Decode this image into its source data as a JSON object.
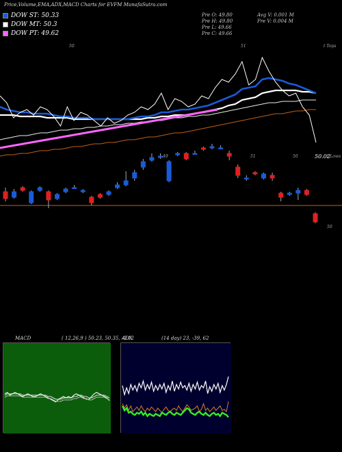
{
  "title": "Price,Volume,EMA,ADX,MACD Charts for EVFM MunafaSutra.com",
  "legend": [
    {
      "label": "DOW ST: 50.33",
      "color": "#1a5bd6"
    },
    {
      "label": "DOW MT: 50.3",
      "color": "#ffffff"
    },
    {
      "label": "DOW PT: 49.62",
      "color": "#ff66ff"
    }
  ],
  "ohlc": {
    "open": "Pre  O: 49.80",
    "high": "Pre  H: 49.80",
    "low": "Pre  L: 49.66",
    "close": "Pre  C: 49.66",
    "avg_vol": "Avg V: 0.001 M",
    "pre_vol": "Pre  V: 0.004  M"
  },
  "top_label": "t Tops",
  "lows_label": "t Lows",
  "price_label": "50.02",
  "ref_line_label": "50",
  "trend_labels": [
    "50",
    "51",
    "49",
    "51",
    "50"
  ],
  "macd_panel": {
    "title": "MACD",
    "params": "( 12,26,9 ) 50.23,  50.35,  -0.12",
    "bg": "#0b5d0b"
  },
  "adx_panel": {
    "title": "ADX",
    "params": "(14  day) 23,  -39,  62",
    "bg": "#00002e"
  },
  "colors": {
    "up": "#1a5bd6",
    "down": "#e02020",
    "ema_short": "#1a5bd6",
    "ema_long": "#ff66ff",
    "ref": "#c06018"
  },
  "chart_data": {
    "type": "candlestick",
    "title": "Price,Volume,EMA,ADX,MACD Charts for EVFM",
    "ylim": [
      49.4,
      51.2
    ],
    "reference_level": 50,
    "candles": [
      {
        "o": 50.1,
        "c": 50.05,
        "h": 50.13,
        "l": 50.03
      },
      {
        "o": 50.06,
        "c": 50.1,
        "h": 50.12,
        "l": 50.05
      },
      {
        "o": 50.13,
        "c": 50.11,
        "h": 50.14,
        "l": 50.1
      },
      {
        "o": 50.02,
        "c": 50.1,
        "h": 50.11,
        "l": 50.01
      },
      {
        "o": 50.11,
        "c": 50.13,
        "h": 50.14,
        "l": 50.1
      },
      {
        "o": 50.1,
        "c": 50.04,
        "h": 50.11,
        "l": 49.98
      },
      {
        "o": 50.05,
        "c": 50.08,
        "h": 50.09,
        "l": 50.04
      },
      {
        "o": 50.1,
        "c": 50.12,
        "h": 50.13,
        "l": 50.09
      },
      {
        "o": 50.13,
        "c": 50.13,
        "h": 50.15,
        "l": 50.12
      },
      {
        "o": 50.1,
        "c": 50.11,
        "h": 50.12,
        "l": 50.09
      },
      {
        "o": 50.06,
        "c": 50.02,
        "h": 50.07,
        "l": 50.0
      },
      {
        "o": 50.08,
        "c": 50.06,
        "h": 50.09,
        "l": 50.05
      },
      {
        "o": 50.08,
        "c": 50.1,
        "h": 50.11,
        "l": 50.07
      },
      {
        "o": 50.13,
        "c": 50.15,
        "h": 50.17,
        "l": 50.12
      },
      {
        "o": 50.15,
        "c": 50.18,
        "h": 50.25,
        "l": 50.14
      },
      {
        "o": 50.2,
        "c": 50.24,
        "h": 50.26,
        "l": 50.18
      },
      {
        "o": 50.28,
        "c": 50.32,
        "h": 50.34,
        "l": 50.26
      },
      {
        "o": 50.33,
        "c": 50.35,
        "h": 50.38,
        "l": 50.32
      },
      {
        "o": 50.35,
        "c": 50.36,
        "h": 50.38,
        "l": 50.34
      },
      {
        "o": 50.18,
        "c": 50.32,
        "h": 50.33,
        "l": 50.17
      },
      {
        "o": 50.37,
        "c": 50.38,
        "h": 50.39,
        "l": 50.36
      },
      {
        "o": 50.38,
        "c": 50.34,
        "h": 50.39,
        "l": 50.33
      },
      {
        "o": 50.38,
        "c": 50.38,
        "h": 50.4,
        "l": 50.37
      },
      {
        "o": 50.42,
        "c": 50.41,
        "h": 50.43,
        "l": 50.4
      },
      {
        "o": 50.42,
        "c": 50.43,
        "h": 50.45,
        "l": 50.41
      },
      {
        "o": 50.42,
        "c": 50.42,
        "h": 50.44,
        "l": 50.41
      },
      {
        "o": 50.38,
        "c": 50.36,
        "h": 50.4,
        "l": 50.33
      },
      {
        "o": 50.28,
        "c": 50.22,
        "h": 50.3,
        "l": 50.2
      },
      {
        "o": 50.2,
        "c": 50.2,
        "h": 50.22,
        "l": 50.18
      },
      {
        "o": 50.24,
        "c": 50.23,
        "h": 50.25,
        "l": 50.22
      },
      {
        "o": 50.2,
        "c": 50.23,
        "h": 50.24,
        "l": 50.19
      },
      {
        "o": 50.22,
        "c": 50.2,
        "h": 50.24,
        "l": 50.18
      },
      {
        "o": 50.09,
        "c": 50.06,
        "h": 50.1,
        "l": 50.03
      },
      {
        "o": 50.08,
        "c": 50.09,
        "h": 50.1,
        "l": 50.07
      },
      {
        "o": 50.09,
        "c": 50.11,
        "h": 50.13,
        "l": 50.04
      },
      {
        "o": 50.11,
        "c": 50.08,
        "h": 50.12,
        "l": 50.07
      },
      {
        "o": 49.94,
        "c": 49.88,
        "h": 49.95,
        "l": 49.87
      }
    ],
    "price_line": [
      50.8,
      50.75,
      50.64,
      50.68,
      50.7,
      50.66,
      50.72,
      50.7,
      50.65,
      50.58,
      50.72,
      50.62,
      50.68,
      50.66,
      50.62,
      50.58,
      50.64,
      50.6,
      50.62,
      50.66,
      50.68,
      50.72,
      50.7,
      50.74,
      50.82,
      50.7,
      50.78,
      50.76,
      50.72,
      50.74,
      50.8,
      50.78,
      50.86,
      50.92,
      50.9,
      50.96,
      51.05,
      50.88,
      50.92,
      51.08,
      50.98,
      50.9,
      50.84,
      50.8,
      50.82,
      50.72,
      50.66,
      50.46
    ],
    "ema_short": [
      50.72,
      50.7,
      50.69,
      50.68,
      50.68,
      50.67,
      50.67,
      50.67,
      50.66,
      50.65,
      50.65,
      50.64,
      50.64,
      50.64,
      50.63,
      50.63,
      50.63,
      50.63,
      50.63,
      50.63,
      50.64,
      50.65,
      50.65,
      50.66,
      50.68,
      50.68,
      50.69,
      50.7,
      50.7,
      50.71,
      50.72,
      50.73,
      50.75,
      50.77,
      50.79,
      50.81,
      50.85,
      50.86,
      50.87,
      50.92,
      50.93,
      50.92,
      50.91,
      50.89,
      50.88,
      50.86,
      50.84,
      50.82
    ],
    "ema_mid": [
      50.66,
      50.66,
      50.66,
      50.65,
      50.65,
      50.65,
      50.65,
      50.64,
      50.64,
      50.64,
      50.64,
      50.63,
      50.63,
      50.63,
      50.63,
      50.63,
      50.63,
      50.63,
      50.63,
      50.63,
      50.63,
      50.63,
      50.64,
      50.64,
      50.65,
      50.65,
      50.66,
      50.66,
      50.66,
      50.67,
      50.68,
      50.69,
      50.7,
      50.71,
      50.73,
      50.74,
      50.77,
      50.78,
      50.79,
      50.82,
      50.83,
      50.84,
      50.84,
      50.84,
      50.84,
      50.83,
      50.83,
      50.82
    ],
    "ema_long": [
      50.48,
      50.49,
      50.5,
      50.51,
      50.51,
      50.52,
      50.53,
      50.53,
      50.54,
      50.55,
      50.55,
      50.56,
      50.56,
      50.57,
      50.57,
      50.58,
      50.58,
      50.59,
      50.59,
      50.6,
      50.6,
      50.61,
      50.61,
      50.62,
      50.62,
      50.63,
      50.64,
      50.64,
      50.65,
      50.65,
      50.66,
      50.66,
      50.67,
      50.68,
      50.69,
      50.7,
      50.71,
      50.72,
      50.73,
      50.74,
      50.75,
      50.75,
      50.76,
      50.76,
      50.76,
      50.77,
      50.77,
      50.77
    ],
    "ema_200": [
      50.36,
      50.37,
      50.37,
      50.38,
      50.38,
      50.39,
      50.4,
      50.4,
      50.41,
      50.41,
      50.42,
      50.43,
      50.43,
      50.44,
      50.45,
      50.45,
      50.46,
      50.46,
      50.47,
      50.48,
      50.48,
      50.49,
      50.5,
      50.5,
      50.51,
      50.52,
      50.53,
      50.53,
      50.54,
      50.55,
      50.56,
      50.57,
      50.58,
      50.59,
      50.6,
      50.61,
      50.62,
      50.63,
      50.64,
      50.65,
      50.66,
      50.67,
      50.67,
      50.68,
      50.69,
      50.69,
      50.7,
      50.7
    ],
    "pink_trend": [
      50.42,
      50.44,
      50.46,
      50.48,
      50.5,
      50.52,
      50.54,
      50.56,
      50.58,
      50.6,
      50.62,
      50.64,
      50.66,
      50.68,
      50.7
    ],
    "macd_line": [
      0.05,
      0.06,
      0.04,
      0.05,
      0.06,
      0.05,
      0.04,
      0.03,
      0.04,
      0.05,
      0.04,
      0.03,
      0.03,
      0.04,
      0.05,
      0.04,
      0.03,
      0.02,
      0.01,
      0.0,
      -0.01,
      0.01,
      0.02,
      0.03,
      0.02,
      0.03,
      0.02,
      0.04,
      0.05,
      0.04,
      0.03,
      0.02,
      0.01,
      0.01,
      0.03,
      0.05,
      0.06,
      0.05,
      0.04,
      0.03,
      0.02,
      0.0
    ],
    "macd_signal": [
      0.04,
      0.05,
      0.05,
      0.05,
      0.05,
      0.05,
      0.05,
      0.04,
      0.04,
      0.04,
      0.04,
      0.04,
      0.04,
      0.04,
      0.04,
      0.04,
      0.04,
      0.03,
      0.03,
      0.02,
      0.01,
      0.01,
      0.01,
      0.02,
      0.02,
      0.02,
      0.02,
      0.03,
      0.03,
      0.04,
      0.04,
      0.03,
      0.03,
      0.02,
      0.02,
      0.03,
      0.04,
      0.04,
      0.04,
      0.04,
      0.03,
      0.02
    ],
    "adx_di": [
      40,
      32,
      38,
      33,
      41,
      36,
      40,
      35,
      42,
      38,
      44,
      36,
      41,
      37,
      43,
      35,
      40,
      36,
      41,
      37,
      42,
      34,
      40,
      36,
      44,
      35,
      41,
      37,
      43,
      38,
      40,
      36,
      42,
      35,
      41,
      37,
      43,
      36,
      40,
      38,
      44,
      33,
      39,
      35,
      41,
      37,
      42,
      34,
      40,
      36,
      41,
      48
    ],
    "adx_line": [
      22,
      18,
      20,
      16,
      17,
      15,
      14,
      16,
      15,
      17,
      14,
      16,
      13,
      15,
      14,
      13,
      15,
      14,
      13,
      16,
      15,
      14,
      16,
      17,
      15,
      14,
      16,
      15,
      14,
      16,
      18,
      20,
      19,
      16,
      15,
      14,
      16,
      17,
      15,
      14,
      16,
      14,
      13,
      15,
      16,
      14,
      15,
      13,
      16,
      15,
      14,
      12
    ],
    "adx_orange": [
      24,
      20,
      23,
      18,
      22,
      17,
      19,
      21,
      18,
      22,
      19,
      17,
      20,
      18,
      21,
      19,
      17,
      20,
      18,
      16,
      19,
      21,
      18,
      17,
      19,
      20,
      18,
      22,
      19,
      17,
      20,
      23,
      21,
      18,
      19,
      20,
      22,
      17,
      19,
      24,
      18,
      20,
      17,
      19,
      21,
      18,
      20,
      22,
      18,
      19,
      17,
      26
    ]
  }
}
